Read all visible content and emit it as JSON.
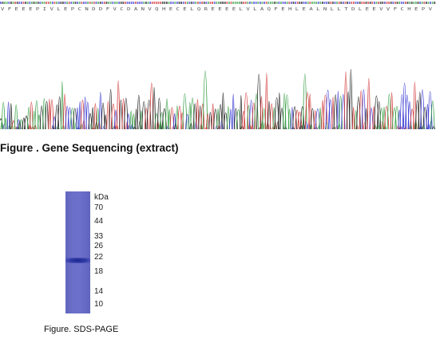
{
  "sequencing": {
    "caption": "Figure . Gene Sequencing (extract)",
    "protein_sequence": "V F E E E P I V L E P C N D D F V C D A N V Q H E C E L Q R E E E E L V L A Q F E H L E A L N L L T D L E E V V F C H E P V",
    "trace_colors": {
      "A": "#3aa049",
      "C": "#3f3fd4",
      "G": "#222222",
      "T": "#d23a3a"
    }
  },
  "sds_page": {
    "caption": "Figure. SDS-PAGE",
    "unit_label": "kDa",
    "markers": [
      "70",
      "44",
      "33",
      "26",
      "22",
      "18",
      "14",
      "10"
    ]
  }
}
